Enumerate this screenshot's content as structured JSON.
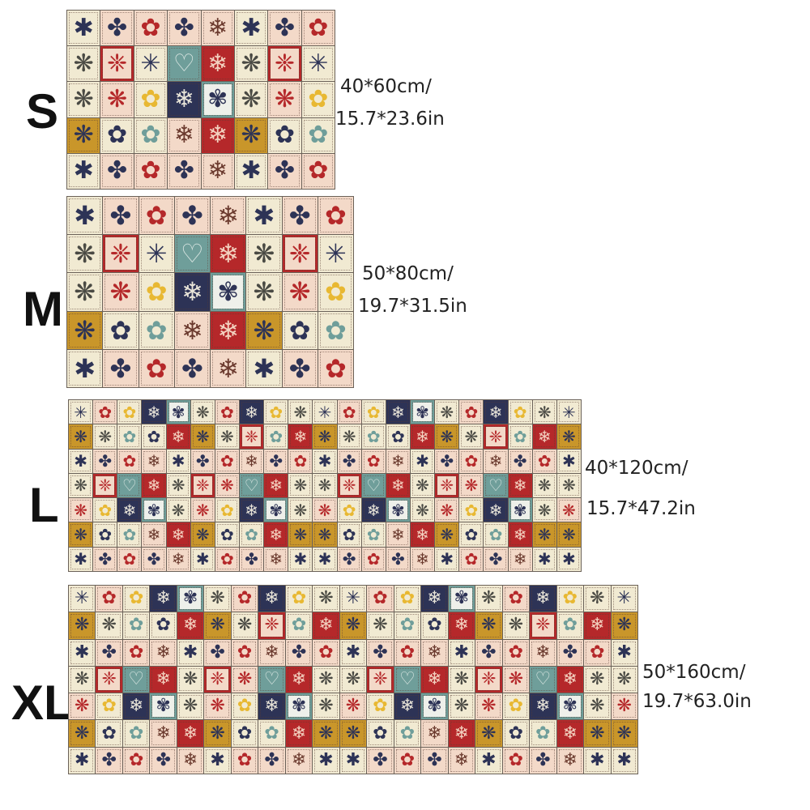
{
  "sizes": [
    {
      "label": "S",
      "metric": "40*60cm/",
      "imperial": "15.7*23.6in"
    },
    {
      "label": "M",
      "metric": "50*80cm/",
      "imperial": "19.7*31.5in"
    },
    {
      "label": "L",
      "metric": "40*120cm/",
      "imperial": "15.7*47.2in"
    },
    {
      "label": "XL",
      "metric": "50*160cm/",
      "imperial": "19.7*63.0in"
    }
  ],
  "colors": {
    "cream": "#f1ead2",
    "pink": "#f3d9c8",
    "navy": "#2d3356",
    "red": "#b5282a",
    "teal": "#6f9e9a",
    "mustard": "#c9962a",
    "yellow": "#e8b832",
    "brown": "#6b3a2e"
  }
}
